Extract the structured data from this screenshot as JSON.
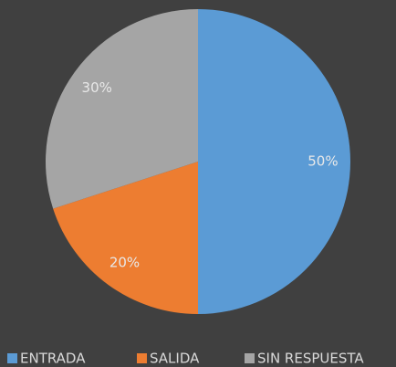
{
  "chart_data": {
    "type": "pie",
    "categories": [
      "ENTRADA",
      "SALIDA",
      "SIN RESPUESTA"
    ],
    "values": [
      50,
      20,
      30
    ],
    "value_labels": [
      "50%",
      "20%",
      "30%"
    ],
    "colors": [
      "#5b9bd5",
      "#ed7d31",
      "#a5a5a5"
    ],
    "legend": "bottom"
  }
}
